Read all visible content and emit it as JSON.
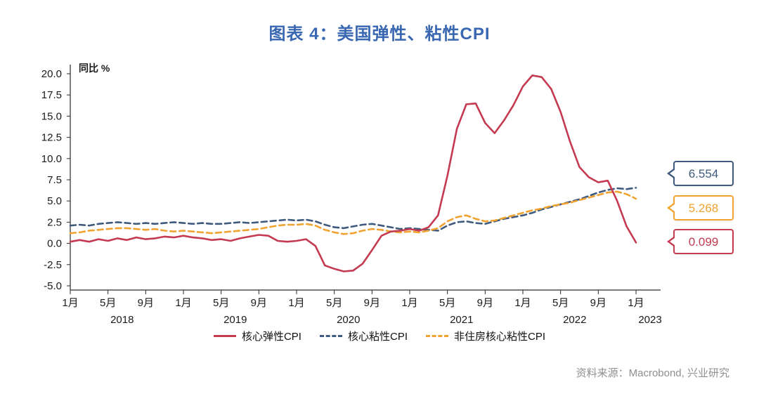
{
  "page": {
    "title": "图表 4：美国弹性、粘性CPI",
    "source": "资料来源：Macrobond, 兴业研究"
  },
  "chart_data": {
    "type": "line",
    "title": "图表 4：美国弹性、粘性CPI",
    "ylabel": "同比 %",
    "ylim": [
      -5.0,
      20.0
    ],
    "ytick_step": 2.5,
    "grid": false,
    "legend_position": "bottom",
    "x_unit": "month",
    "x_range": "2018-01 to 2023-01",
    "xtick_months": [
      "1月",
      "5月",
      "9月"
    ],
    "year_labels": [
      "2018",
      "2019",
      "2020",
      "2021",
      "2022",
      "2023"
    ],
    "series": [
      {
        "name": "核心弹性CPI",
        "color": "#c43a50",
        "style": "solid",
        "values": [
          0.2,
          0.4,
          0.2,
          0.5,
          0.3,
          0.6,
          0.4,
          0.7,
          0.5,
          0.6,
          0.8,
          0.7,
          0.9,
          0.7,
          0.6,
          0.4,
          0.5,
          0.3,
          0.6,
          0.8,
          1.0,
          0.9,
          0.3,
          0.2,
          0.3,
          0.5,
          -0.3,
          -2.6,
          -3.0,
          -3.3,
          -3.2,
          -2.4,
          -0.8,
          0.9,
          1.4,
          1.5,
          1.7,
          1.5,
          1.9,
          3.3,
          8.0,
          13.5,
          16.4,
          16.5,
          14.2,
          13.0,
          14.5,
          16.3,
          18.5,
          19.8,
          19.6,
          18.2,
          15.5,
          12.0,
          9.0,
          7.8,
          7.2,
          7.4,
          5.0,
          2.0,
          0.099
        ]
      },
      {
        "name": "核心粘性CPI",
        "color": "#3f5a7c",
        "style": "dashed",
        "values": [
          2.1,
          2.2,
          2.1,
          2.3,
          2.4,
          2.5,
          2.4,
          2.3,
          2.4,
          2.3,
          2.4,
          2.5,
          2.4,
          2.3,
          2.4,
          2.3,
          2.3,
          2.4,
          2.5,
          2.4,
          2.5,
          2.6,
          2.7,
          2.8,
          2.7,
          2.8,
          2.6,
          2.2,
          1.9,
          1.8,
          2.0,
          2.2,
          2.3,
          2.1,
          1.9,
          1.7,
          1.8,
          1.7,
          1.6,
          1.5,
          2.1,
          2.5,
          2.6,
          2.4,
          2.3,
          2.6,
          2.9,
          3.1,
          3.3,
          3.6,
          4.0,
          4.3,
          4.6,
          4.9,
          5.2,
          5.6,
          6.0,
          6.3,
          6.5,
          6.4,
          6.554
        ]
      },
      {
        "name": "非住房核心粘性CPI",
        "color": "#f0a330",
        "style": "dashed",
        "values": [
          1.2,
          1.3,
          1.5,
          1.6,
          1.7,
          1.8,
          1.8,
          1.7,
          1.6,
          1.7,
          1.5,
          1.4,
          1.5,
          1.4,
          1.3,
          1.2,
          1.3,
          1.4,
          1.5,
          1.6,
          1.7,
          1.9,
          2.1,
          2.2,
          2.2,
          2.3,
          2.1,
          1.6,
          1.3,
          1.1,
          1.2,
          1.5,
          1.7,
          1.6,
          1.4,
          1.3,
          1.4,
          1.3,
          1.5,
          1.8,
          2.6,
          3.1,
          3.3,
          2.9,
          2.6,
          2.7,
          3.0,
          3.3,
          3.6,
          3.9,
          4.1,
          4.4,
          4.6,
          4.8,
          5.1,
          5.4,
          5.7,
          6.0,
          6.1,
          5.8,
          5.268
        ]
      }
    ],
    "end_labels": [
      {
        "series": "核心粘性CPI",
        "value": "6.554",
        "color": "#3f5a7c"
      },
      {
        "series": "非住房核心粘性CPI",
        "value": "5.268",
        "color": "#f0a330"
      },
      {
        "series": "核心弹性CPI",
        "value": "0.099",
        "color": "#c43a50"
      }
    ]
  }
}
